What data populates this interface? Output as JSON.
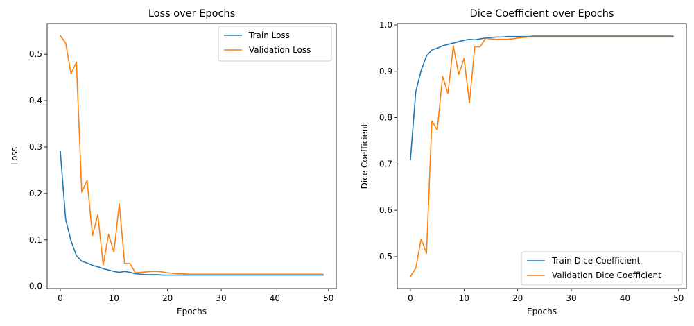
{
  "chart_data": [
    {
      "type": "line",
      "title": "Loss over Epochs",
      "xlabel": "Epochs",
      "ylabel": "Loss",
      "xlim": [
        -2.45,
        51.45
      ],
      "ylim": [
        -0.005,
        0.566
      ],
      "xticks": [
        0,
        10,
        20,
        30,
        40,
        50
      ],
      "yticks": [
        0.0,
        0.1,
        0.2,
        0.3,
        0.4,
        0.5
      ],
      "ytick_labels": [
        "0.0",
        "0.1",
        "0.2",
        "0.3",
        "0.4",
        "0.5"
      ],
      "legend_position": "upper-right",
      "x": [
        0,
        1,
        2,
        3,
        4,
        5,
        6,
        7,
        8,
        9,
        10,
        11,
        12,
        13,
        14,
        15,
        16,
        17,
        18,
        19,
        20,
        21,
        22,
        23,
        24,
        25,
        26,
        27,
        28,
        29,
        30,
        31,
        32,
        33,
        34,
        35,
        36,
        37,
        38,
        39,
        40,
        41,
        42,
        43,
        44,
        45,
        46,
        47,
        48,
        49
      ],
      "series": [
        {
          "name": "Train Loss",
          "color": "#1f77b4",
          "values": [
            0.291,
            0.144,
            0.098,
            0.066,
            0.054,
            0.05,
            0.045,
            0.042,
            0.038,
            0.035,
            0.032,
            0.03,
            0.032,
            0.03,
            0.027,
            0.026,
            0.025,
            0.025,
            0.025,
            0.024,
            0.024,
            0.024,
            0.024,
            0.024,
            0.024,
            0.024,
            0.024,
            0.024,
            0.024,
            0.024,
            0.024,
            0.024,
            0.024,
            0.024,
            0.024,
            0.024,
            0.024,
            0.024,
            0.024,
            0.024,
            0.024,
            0.024,
            0.024,
            0.024,
            0.024,
            0.024,
            0.024,
            0.024,
            0.024,
            0.024
          ]
        },
        {
          "name": "Validation Loss",
          "color": "#ff7f0e",
          "values": [
            0.54,
            0.524,
            0.458,
            0.483,
            0.203,
            0.228,
            0.109,
            0.154,
            0.046,
            0.112,
            0.074,
            0.178,
            0.049,
            0.049,
            0.029,
            0.03,
            0.031,
            0.032,
            0.032,
            0.031,
            0.029,
            0.028,
            0.027,
            0.027,
            0.026,
            0.026,
            0.026,
            0.026,
            0.026,
            0.026,
            0.026,
            0.026,
            0.026,
            0.026,
            0.026,
            0.026,
            0.026,
            0.026,
            0.026,
            0.026,
            0.026,
            0.026,
            0.026,
            0.026,
            0.026,
            0.026,
            0.026,
            0.026,
            0.026,
            0.026
          ]
        }
      ]
    },
    {
      "type": "line",
      "title": "Dice Coefficient over Epochs",
      "xlabel": "Epochs",
      "ylabel": "Dice Coefficient",
      "xlim": [
        -2.45,
        51.45
      ],
      "ylim": [
        0.431,
        1.003
      ],
      "xticks": [
        0,
        10,
        20,
        30,
        40,
        50
      ],
      "yticks": [
        0.5,
        0.6,
        0.7,
        0.8,
        0.9,
        1.0
      ],
      "ytick_labels": [
        "0.5",
        "0.6",
        "0.7",
        "0.8",
        "0.9",
        "1.0"
      ],
      "legend_position": "lower-right",
      "x": [
        0,
        1,
        2,
        3,
        4,
        5,
        6,
        7,
        8,
        9,
        10,
        11,
        12,
        13,
        14,
        15,
        16,
        17,
        18,
        19,
        20,
        21,
        22,
        23,
        24,
        25,
        26,
        27,
        28,
        29,
        30,
        31,
        32,
        33,
        34,
        35,
        36,
        37,
        38,
        39,
        40,
        41,
        42,
        43,
        44,
        45,
        46,
        47,
        48,
        49
      ],
      "series": [
        {
          "name": "Train Dice Coefficient",
          "color": "#1f77b4",
          "values": [
            0.709,
            0.856,
            0.902,
            0.933,
            0.946,
            0.95,
            0.955,
            0.958,
            0.961,
            0.964,
            0.967,
            0.969,
            0.968,
            0.97,
            0.972,
            0.973,
            0.974,
            0.974,
            0.975,
            0.975,
            0.975,
            0.975,
            0.975,
            0.976,
            0.976,
            0.976,
            0.976,
            0.976,
            0.976,
            0.976,
            0.976,
            0.976,
            0.976,
            0.976,
            0.976,
            0.976,
            0.976,
            0.976,
            0.976,
            0.976,
            0.976,
            0.976,
            0.976,
            0.976,
            0.976,
            0.976,
            0.976,
            0.976,
            0.976,
            0.976
          ]
        },
        {
          "name": "Validation Dice Coefficient",
          "color": "#ff7f0e",
          "values": [
            0.457,
            0.475,
            0.538,
            0.507,
            0.793,
            0.773,
            0.889,
            0.852,
            0.955,
            0.893,
            0.928,
            0.832,
            0.953,
            0.953,
            0.971,
            0.97,
            0.969,
            0.969,
            0.969,
            0.97,
            0.972,
            0.973,
            0.974,
            0.974,
            0.974,
            0.974,
            0.974,
            0.974,
            0.974,
            0.974,
            0.974,
            0.974,
            0.974,
            0.974,
            0.974,
            0.974,
            0.974,
            0.974,
            0.974,
            0.974,
            0.974,
            0.974,
            0.974,
            0.974,
            0.974,
            0.974,
            0.974,
            0.974,
            0.974,
            0.974
          ]
        }
      ]
    }
  ]
}
